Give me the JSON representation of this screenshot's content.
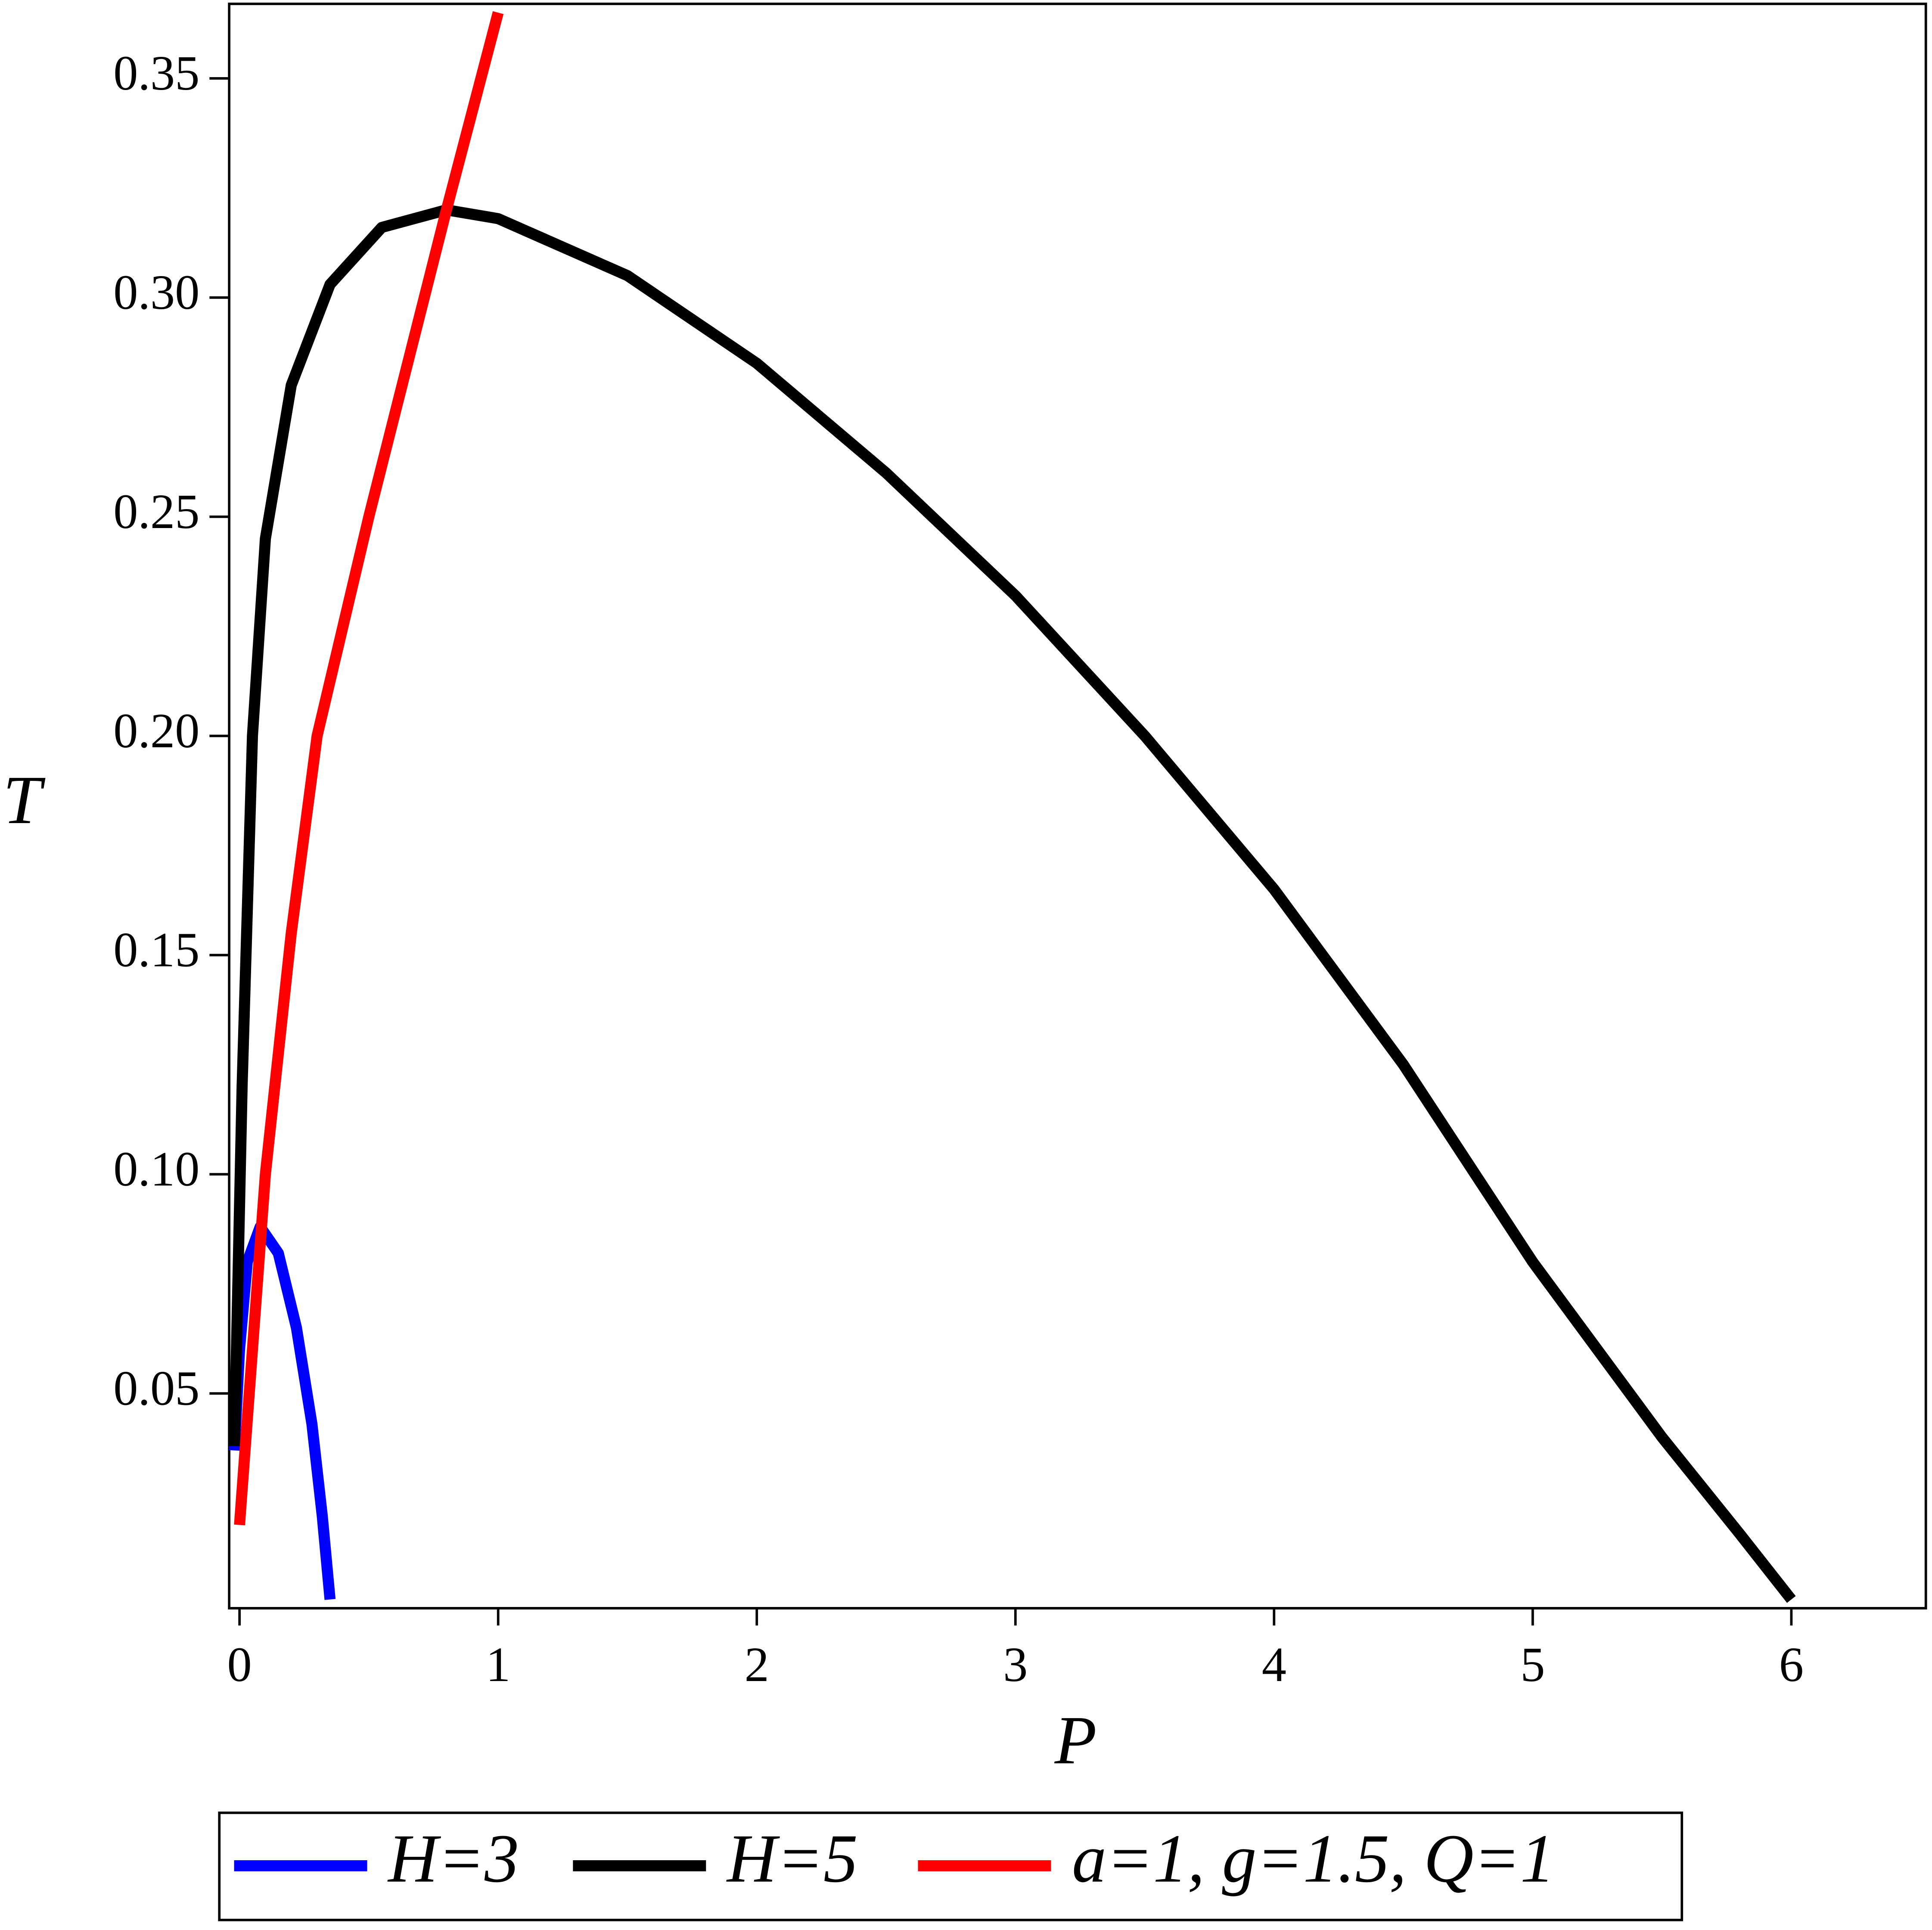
{
  "chart_data": {
    "type": "line",
    "xlabel": "P",
    "ylabel": "T",
    "xlim": [
      -0.04,
      6.52
    ],
    "ylim": [
      0.001,
      0.367
    ],
    "xticks": [
      0,
      1,
      2,
      3,
      4,
      5,
      6
    ],
    "yticks": [
      0.05,
      {
        "value": 0.1,
        "label": "0.10"
      },
      0.15,
      {
        "value": 0.2,
        "label": "0.20"
      },
      0.25,
      {
        "value": 0.3,
        "label": "0.30"
      },
      0.35
    ],
    "series": [
      {
        "name": "H=3",
        "color": "#0000ff",
        "x": [
          -0.02,
          0,
          0.03,
          0.08,
          0.15,
          0.22,
          0.28,
          0.32,
          0.35
        ],
        "values": [
          0.037,
          0.06,
          0.08,
          0.088,
          0.082,
          0.065,
          0.043,
          0.022,
          0.003
        ]
      },
      {
        "name": "H=5",
        "color": "#000000",
        "x": [
          -0.02,
          0.01,
          0.05,
          0.1,
          0.2,
          0.35,
          0.55,
          0.8,
          1.0,
          1.5,
          2,
          2.5,
          3,
          3.5,
          4,
          4.5,
          5,
          5.5,
          5.8,
          6
        ],
        "values": [
          0.038,
          0.12,
          0.2,
          0.245,
          0.28,
          0.303,
          0.316,
          0.32,
          0.318,
          0.305,
          0.285,
          0.26,
          0.232,
          0.2,
          0.165,
          0.125,
          0.08,
          0.04,
          0.018,
          0.003
        ]
      },
      {
        "name": "a=1, g=1.5, Q=1",
        "color": "#ff0000",
        "x": [
          0,
          0.05,
          0.1,
          0.2,
          0.3,
          0.5,
          0.8,
          1
        ],
        "values": [
          0.02,
          0.06,
          0.1,
          0.155,
          0.2,
          0.25,
          0.32,
          0.365
        ]
      }
    ]
  }
}
